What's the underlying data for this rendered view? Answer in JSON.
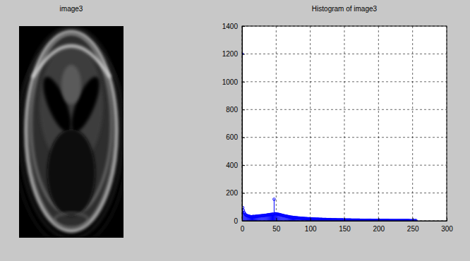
{
  "chart_data": [
    {
      "type": "image",
      "title": "image3"
    },
    {
      "type": "stem",
      "title": "Histogram of image3",
      "color": "#0000ff",
      "marker": "circle",
      "grid": true,
      "xlim": [
        0,
        300
      ],
      "ylim": [
        0,
        1400
      ],
      "xticks": [
        0,
        50,
        100,
        150,
        200,
        250,
        300
      ],
      "yticks": [
        0,
        200,
        400,
        600,
        800,
        1000,
        1200,
        1400
      ],
      "x": [
        0,
        1,
        2,
        3,
        4,
        5,
        6,
        7,
        8,
        9,
        10,
        11,
        12,
        13,
        14,
        15,
        16,
        17,
        18,
        19,
        20,
        21,
        22,
        23,
        24,
        25,
        26,
        27,
        28,
        29,
        30,
        31,
        32,
        33,
        34,
        35,
        36,
        37,
        38,
        39,
        40,
        41,
        42,
        43,
        44,
        45,
        46,
        47,
        48,
        49,
        50,
        51,
        52,
        53,
        54,
        55,
        56,
        57,
        58,
        59,
        60,
        61,
        62,
        63,
        64,
        65,
        66,
        67,
        68,
        69,
        70,
        71,
        72,
        73,
        74,
        75,
        76,
        77,
        78,
        79,
        80,
        81,
        82,
        83,
        84,
        85,
        86,
        87,
        88,
        89,
        90,
        91,
        92,
        93,
        94,
        95,
        96,
        97,
        98,
        99,
        100,
        101,
        102,
        103,
        104,
        105,
        106,
        107,
        108,
        109,
        110,
        111,
        112,
        113,
        114,
        115,
        116,
        117,
        118,
        119,
        120,
        121,
        122,
        123,
        124,
        125,
        126,
        127,
        128,
        129,
        130,
        131,
        132,
        133,
        134,
        135,
        136,
        137,
        138,
        139,
        140,
        141,
        142,
        143,
        144,
        145,
        146,
        147,
        148,
        149,
        150,
        151,
        152,
        153,
        154,
        155,
        156,
        157,
        158,
        159,
        160,
        161,
        162,
        163,
        164,
        165,
        166,
        167,
        168,
        169,
        170,
        171,
        172,
        173,
        174,
        175,
        176,
        177,
        178,
        179,
        180,
        181,
        182,
        183,
        184,
        185,
        186,
        187,
        188,
        189,
        190,
        191,
        192,
        193,
        194,
        195,
        196,
        197,
        198,
        199,
        200,
        201,
        202,
        203,
        204,
        205,
        206,
        207,
        208,
        209,
        210,
        211,
        212,
        213,
        214,
        215,
        216,
        217,
        218,
        219,
        220,
        221,
        222,
        223,
        224,
        225,
        226,
        227,
        228,
        229,
        230,
        231,
        232,
        233,
        234,
        235,
        236,
        237,
        238,
        239,
        240,
        241,
        242,
        243,
        244,
        245,
        246,
        247,
        248,
        249,
        250,
        251,
        252,
        253,
        254,
        255
      ],
      "values": [
        1200,
        95,
        75,
        60,
        52,
        45,
        40,
        38,
        36,
        35,
        33,
        32,
        30,
        30,
        29,
        30,
        31,
        32,
        30,
        31,
        33,
        32,
        34,
        33,
        35,
        34,
        36,
        35,
        37,
        36,
        38,
        37,
        38,
        39,
        40,
        40,
        41,
        42,
        43,
        44,
        44,
        45,
        46,
        46,
        47,
        48,
        48,
        155,
        50,
        51,
        50,
        49,
        48,
        47,
        46,
        45,
        44,
        42,
        41,
        40,
        38,
        37,
        36,
        35,
        34,
        33,
        32,
        31,
        30,
        29,
        28,
        27,
        26,
        26,
        25,
        24,
        24,
        23,
        23,
        22,
        22,
        21,
        21,
        20,
        20,
        19,
        19,
        18,
        18,
        18,
        17,
        17,
        17,
        16,
        16,
        16,
        15,
        15,
        15,
        15,
        14,
        14,
        14,
        14,
        13,
        13,
        13,
        13,
        12,
        12,
        12,
        12,
        12,
        11,
        11,
        11,
        11,
        11,
        10,
        10,
        10,
        10,
        10,
        10,
        9,
        9,
        9,
        9,
        9,
        9,
        9,
        8,
        8,
        8,
        8,
        8,
        8,
        8,
        8,
        7,
        7,
        7,
        7,
        7,
        7,
        7,
        7,
        7,
        7,
        6,
        6,
        6,
        6,
        6,
        6,
        6,
        6,
        6,
        6,
        6,
        5,
        5,
        5,
        5,
        5,
        5,
        5,
        5,
        5,
        5,
        5,
        5,
        5,
        4,
        4,
        4,
        4,
        4,
        4,
        4,
        4,
        4,
        4,
        4,
        4,
        4,
        4,
        4,
        4,
        4,
        3,
        3,
        3,
        3,
        3,
        3,
        3,
        3,
        3,
        3,
        3,
        3,
        3,
        3,
        3,
        3,
        3,
        3,
        3,
        3,
        3,
        3,
        3,
        3,
        3,
        3,
        2,
        2,
        2,
        2,
        2,
        2,
        2,
        2,
        2,
        2,
        2,
        2,
        2,
        2,
        2,
        2,
        2,
        2,
        2,
        2,
        2,
        2,
        2,
        2,
        2,
        2,
        2,
        2,
        2,
        2,
        1,
        1,
        1,
        1,
        1,
        1,
        1,
        1,
        1,
        2
      ]
    }
  ]
}
